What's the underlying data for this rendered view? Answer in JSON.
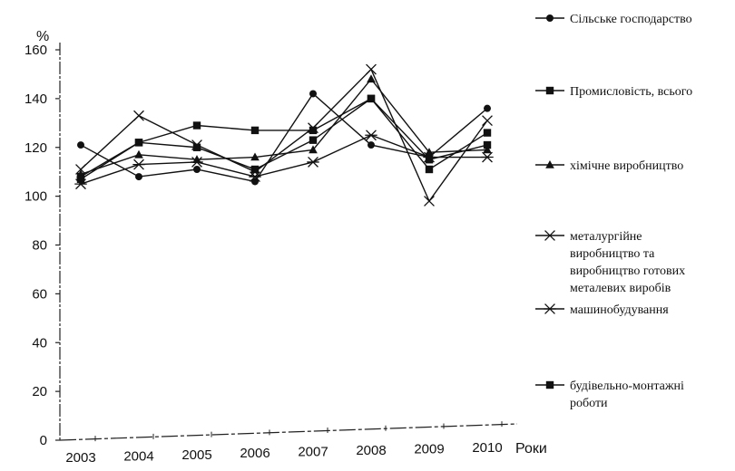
{
  "chart_data": {
    "type": "line",
    "title": "",
    "xlabel": "Роки",
    "ylabel": "%",
    "ylim": [
      0,
      160
    ],
    "yticks": [
      0,
      20,
      40,
      60,
      80,
      100,
      120,
      140,
      160
    ],
    "categories": [
      "2003",
      "2004",
      "2005",
      "2006",
      "2007",
      "2008",
      "2009",
      "2010"
    ],
    "legend_position": "right",
    "series": [
      {
        "name": "Сільське господарство",
        "marker": "circle",
        "values": [
          121,
          108,
          111,
          106,
          142,
          121,
          116,
          136
        ]
      },
      {
        "name": "Промисловість, всього",
        "marker": "square",
        "values": [
          108,
          122,
          120,
          111,
          123,
          140,
          111,
          126
        ]
      },
      {
        "name": "хімічне виробництво",
        "marker": "triangle",
        "values": [
          109,
          117,
          115,
          116,
          119,
          148,
          118,
          119
        ]
      },
      {
        "name": "металургійне виробництво та виробництво готових металевих виробів",
        "marker": "x",
        "values": [
          111,
          133,
          121,
          110,
          128,
          152,
          98,
          131
        ]
      },
      {
        "name": "машинобудування",
        "marker": "asterisk",
        "values": [
          105,
          113,
          114,
          108,
          114,
          125,
          116,
          116
        ]
      },
      {
        "name": "будівельно-монтажні роботи",
        "marker": "square",
        "values": [
          107,
          122,
          129,
          127,
          127,
          140,
          115,
          121
        ]
      }
    ]
  }
}
